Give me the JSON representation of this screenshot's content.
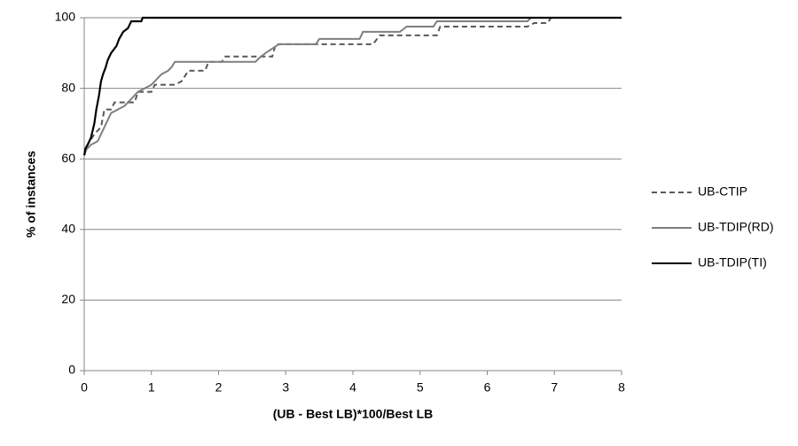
{
  "chart_data": {
    "type": "line",
    "xlabel": "(UB - Best LB)*100/Best LB",
    "ylabel": "% of instances",
    "xlim": [
      0,
      8
    ],
    "xticks": [
      0,
      1,
      2,
      3,
      4,
      5,
      6,
      7,
      8
    ],
    "ylim": [
      0,
      100
    ],
    "yticks": [
      0,
      20,
      40,
      60,
      80,
      100
    ],
    "grid": true,
    "legend": "right",
    "series": [
      {
        "name": "UB-CTIP",
        "color": "#595959",
        "line_style": "dashed",
        "x": [
          0,
          0.05,
          0.15,
          0.25,
          0.3,
          0.4,
          0.45,
          0.75,
          0.8,
          1.0,
          1.05,
          1.35,
          1.45,
          1.55,
          1.8,
          1.85,
          2.05,
          2.1,
          2.8,
          2.85,
          4.3,
          4.4,
          5.25,
          5.3,
          6.6,
          6.7,
          6.9,
          6.95,
          8
        ],
        "values": [
          61,
          64,
          67,
          69,
          74,
          74,
          76,
          76,
          79,
          79,
          81,
          81,
          82,
          85,
          85,
          87.5,
          87.5,
          89,
          89,
          92.5,
          92.5,
          95,
          95,
          97.5,
          97.5,
          98.5,
          98.5,
          100,
          100
        ]
      },
      {
        "name": "UB-TDIP(RD)",
        "color": "#7f7f7f",
        "line_style": "solid",
        "x": [
          0,
          0.1,
          0.2,
          0.25,
          0.3,
          0.35,
          0.4,
          0.5,
          0.6,
          0.7,
          0.8,
          0.9,
          1.0,
          1.05,
          1.15,
          1.25,
          1.3,
          1.35,
          2.55,
          2.6,
          2.7,
          2.9,
          3.45,
          3.5,
          4.1,
          4.15,
          4.7,
          4.8,
          5.2,
          5.25,
          6.6,
          6.65,
          8
        ],
        "values": [
          62,
          64,
          65,
          67,
          69,
          71,
          73,
          74,
          75,
          77,
          79,
          80,
          81,
          82,
          84,
          85,
          86,
          87.5,
          87.5,
          88.5,
          90,
          92.5,
          92.5,
          94,
          94,
          96,
          96,
          97.5,
          97.5,
          99,
          99,
          100,
          100
        ]
      },
      {
        "name": "UB-TDIP(TI)",
        "color": "#000000",
        "line_style": "solid",
        "x": [
          0,
          0.02,
          0.05,
          0.1,
          0.15,
          0.18,
          0.22,
          0.25,
          0.28,
          0.32,
          0.35,
          0.4,
          0.48,
          0.52,
          0.58,
          0.65,
          0.7,
          0.85,
          0.87,
          8
        ],
        "values": [
          61,
          63,
          64,
          66,
          70,
          74,
          78,
          82,
          84,
          86,
          88,
          90,
          92,
          94,
          96,
          97,
          99,
          99,
          100,
          100
        ]
      }
    ]
  }
}
